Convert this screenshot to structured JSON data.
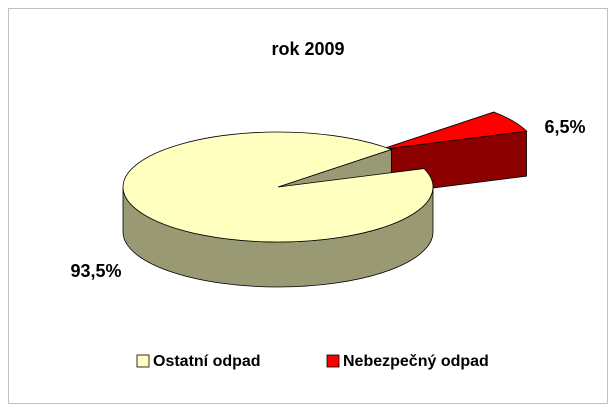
{
  "chart_data": {
    "type": "pie3d",
    "title": "rok 2009",
    "categories": [
      "Ostatní odpad",
      "Nebezpečný odpad"
    ],
    "values": [
      93.5,
      6.5
    ],
    "value_labels": [
      "93,5%",
      "6,5%"
    ],
    "colors": [
      "#ffffc0",
      "#ff0000"
    ],
    "legend": "bottom"
  }
}
